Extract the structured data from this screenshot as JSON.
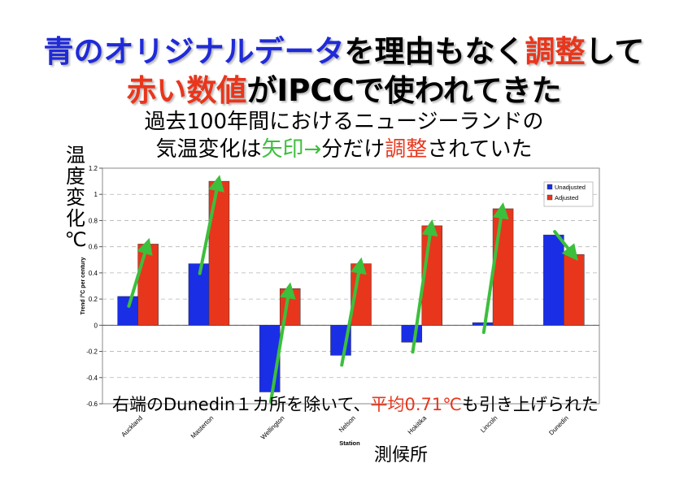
{
  "headline": {
    "line1": [
      {
        "text": "青のオリジナルデータ",
        "color": "#1f2ad8"
      },
      {
        "text": "を理由もなく",
        "color": "#000000"
      },
      {
        "text": "調整",
        "color": "#e8361c"
      },
      {
        "text": "して",
        "color": "#000000"
      }
    ],
    "line2": [
      {
        "text": "赤い数値",
        "color": "#e8361c"
      },
      {
        "text": "がIPCCで使われてきた",
        "color": "#000000"
      }
    ]
  },
  "subtitle": {
    "line1": "過去100年間におけるニュージーランドの",
    "line2": [
      {
        "text": "気温変化は",
        "color": "#000000"
      },
      {
        "text": "矢印→",
        "color": "#3cbf3c"
      },
      {
        "text": "分だけ",
        "color": "#000000"
      },
      {
        "text": "調整",
        "color": "#e8361c"
      },
      {
        "text": "されていた",
        "color": "#000000"
      }
    ]
  },
  "side_label": "温\n度\n変\n化\n℃",
  "bottom_label": "測候所",
  "annotation": [
    {
      "text": "右端のDunedin１カ所を除いて、",
      "color": "#000000"
    },
    {
      "text": "平均0.71℃",
      "color": "#e8361c"
    },
    {
      "text": "も引き上げられた",
      "color": "#000000"
    }
  ],
  "chart_data": {
    "type": "bar",
    "categories": [
      "Auckland",
      "Masterton",
      "Wellington",
      "Nelson",
      "Hokitika",
      "Lincoln",
      "Dunedin"
    ],
    "series": [
      {
        "name": "Unadjusted",
        "color": "#1a2ee6",
        "values": [
          0.22,
          0.47,
          -0.51,
          -0.23,
          -0.13,
          0.02,
          0.69
        ]
      },
      {
        "name": "Adjusted",
        "color": "#e8361c",
        "values": [
          0.62,
          1.1,
          0.28,
          0.47,
          0.76,
          0.89,
          0.54
        ]
      }
    ],
    "xlabel": "Station",
    "ylabel": "Trend /°C per century",
    "ylim": [
      -0.6,
      1.2
    ],
    "yticks": [
      -0.6,
      -0.4,
      -0.2,
      0,
      0.2,
      0.4,
      0.6,
      0.8,
      1,
      1.2
    ],
    "grid": true,
    "legend": "top-right",
    "arrow_color": "#3cbf3c"
  }
}
